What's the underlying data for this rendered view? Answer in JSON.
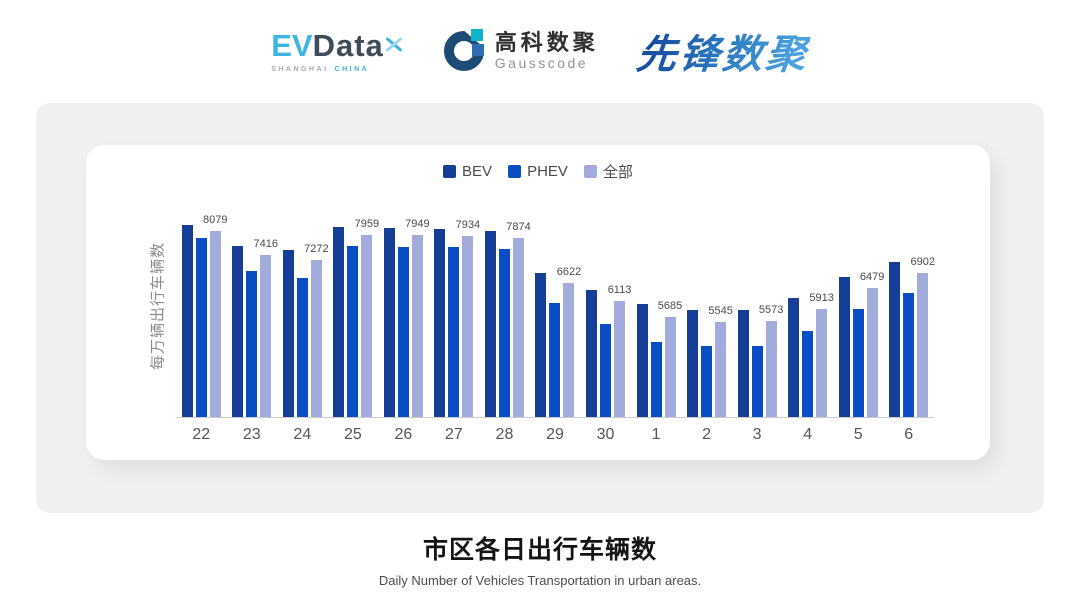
{
  "header": {
    "evdata": {
      "ev": "EV",
      "data": "Data",
      "sub_left": "SHANGHAI",
      "sub_right": "CHINA"
    },
    "gausscode": {
      "cn": "高科数聚",
      "en": "Gausscode"
    },
    "xianfeng": {
      "text": "先锋数聚"
    }
  },
  "chart_data": {
    "type": "bar",
    "title": "市区各日出行车辆数",
    "subtitle": "Daily Number of Vehicles Transportation in urban areas.",
    "ylabel": "每万辆出行车辆数",
    "xlabel": "",
    "categories": [
      "22",
      "23",
      "24",
      "25",
      "26",
      "27",
      "28",
      "29",
      "30",
      "1",
      "2",
      "3",
      "4",
      "5",
      "6"
    ],
    "series": [
      {
        "name": "BEV",
        "color": "#153f96",
        "values": [
          8234,
          7664,
          7553,
          8179,
          8151,
          8124,
          8059,
          6918,
          6422,
          6035,
          5879,
          5888,
          6210,
          6790,
          7204
        ]
      },
      {
        "name": "PHEV",
        "color": "#0a4ec6",
        "values": [
          7866,
          6974,
          6753,
          7645,
          7636,
          7618,
          7562,
          6072,
          5474,
          4977,
          4867,
          4876,
          5299,
          5897,
          6357
        ]
      },
      {
        "name": "全部",
        "color": "#a2abdb",
        "values": [
          8079,
          7416,
          7272,
          7959,
          7949,
          7934,
          7874,
          6622,
          6113,
          5685,
          5545,
          5573,
          5913,
          6479,
          6902
        ]
      }
    ],
    "labeled_series": "全部",
    "data_labels": [
      8079,
      7416,
      7272,
      7959,
      7949,
      7934,
      7874,
      6622,
      6113,
      5685,
      5545,
      5573,
      5913,
      6479,
      6902
    ],
    "ylim": [
      2900,
      9100
    ],
    "legend_position": "top",
    "grid": false,
    "colors": {
      "axis_line": "#cccccc",
      "tick_text": "#555555",
      "value_label_text": "#4a4a4a",
      "panel_bg": "#f0f0f1",
      "card_bg": "#ffffff"
    }
  }
}
